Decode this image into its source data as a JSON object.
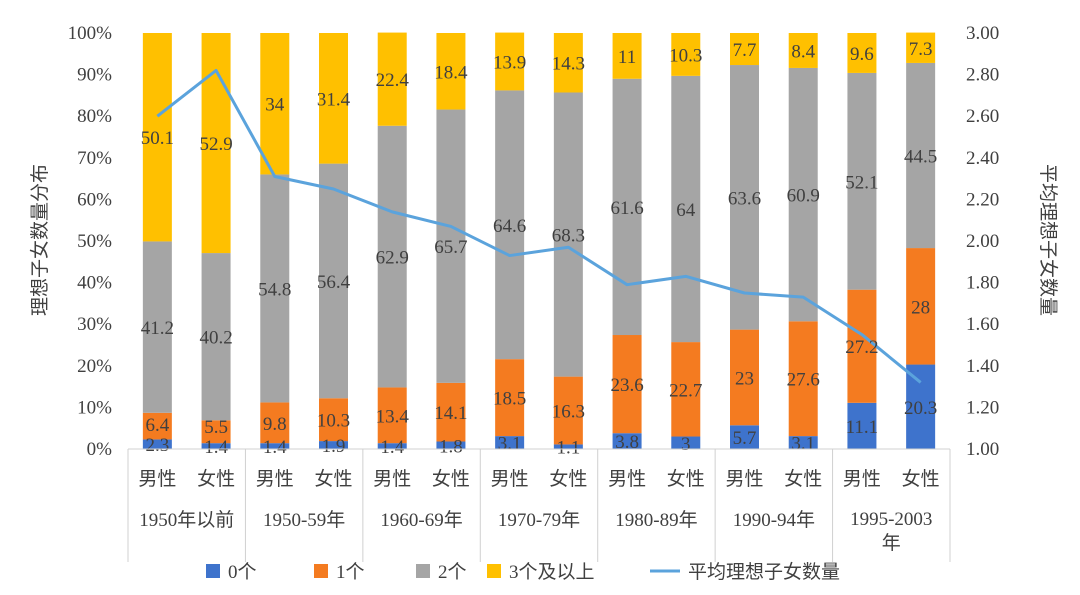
{
  "chart_data": {
    "type": "bar",
    "stacked": true,
    "ylabel": "理想子女数量分布",
    "y2label": "平均理想子女数量",
    "ylim": [
      0,
      100
    ],
    "y2lim": [
      1.0,
      3.0
    ],
    "yticks": [
      "0%",
      "10%",
      "20%",
      "30%",
      "40%",
      "50%",
      "60%",
      "70%",
      "80%",
      "90%",
      "100%"
    ],
    "y2ticks": [
      "1.00",
      "1.20",
      "1.40",
      "1.60",
      "1.80",
      "2.00",
      "2.20",
      "2.40",
      "2.60",
      "2.80",
      "3.00"
    ],
    "groups": [
      "1950年以前",
      "1950-59年",
      "1960-69年",
      "1970-79年",
      "1980-89年",
      "1990-94年",
      "1995-2003年"
    ],
    "categories": [
      "男性",
      "女性",
      "男性",
      "女性",
      "男性",
      "女性",
      "男性",
      "女性",
      "男性",
      "女性",
      "男性",
      "女性",
      "男性",
      "女性"
    ],
    "series": [
      {
        "name": "0个",
        "color": "#3E73CC",
        "values": [
          2.3,
          1.4,
          1.4,
          1.9,
          1.4,
          1.8,
          3.1,
          1.1,
          3.8,
          3.0,
          5.7,
          3.1,
          11.1,
          20.3
        ]
      },
      {
        "name": "1个",
        "color": "#F47B20",
        "values": [
          6.4,
          5.5,
          9.8,
          10.3,
          13.4,
          14.1,
          18.5,
          16.3,
          23.6,
          22.7,
          23.0,
          27.6,
          27.2,
          28.0
        ]
      },
      {
        "name": "2个",
        "color": "#A5A5A5",
        "values": [
          41.2,
          40.2,
          54.8,
          56.4,
          62.9,
          65.7,
          64.6,
          68.3,
          61.6,
          64.0,
          63.6,
          60.9,
          52.1,
          44.5
        ]
      },
      {
        "name": "3个及以上",
        "color": "#FFC000",
        "values": [
          50.1,
          52.9,
          34.0,
          31.4,
          22.4,
          18.4,
          13.9,
          14.3,
          11.0,
          10.3,
          7.7,
          8.4,
          9.6,
          7.3
        ]
      }
    ],
    "line": {
      "name": "平均理想子女数量",
      "color": "#5BA3DC",
      "axis": "right",
      "values": [
        2.6,
        2.82,
        2.31,
        2.25,
        2.14,
        2.07,
        1.93,
        1.97,
        1.79,
        1.83,
        1.75,
        1.73,
        1.55,
        1.32
      ]
    },
    "legend": "bottom",
    "grid": false
  }
}
